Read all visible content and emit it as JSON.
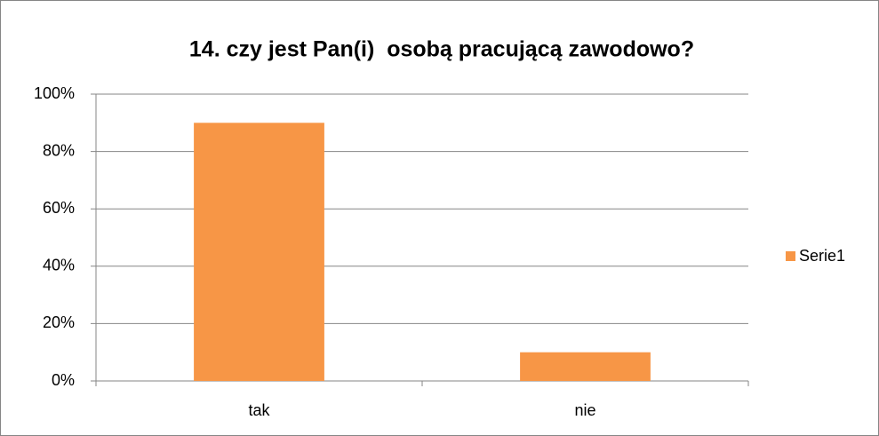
{
  "chart_data": {
    "type": "bar",
    "title": "14. czy jest Pan(i)  osobą pracującą zawodowo?",
    "categories": [
      "tak",
      "nie"
    ],
    "series": [
      {
        "name": "Serie1",
        "color": "#f79646",
        "values": [
          90,
          10
        ]
      }
    ],
    "ylim": [
      0,
      100
    ],
    "yticks": [
      {
        "value": 0,
        "label": "0%"
      },
      {
        "value": 20,
        "label": "20%"
      },
      {
        "value": 40,
        "label": "40%"
      },
      {
        "value": 60,
        "label": "60%"
      },
      {
        "value": 80,
        "label": "80%"
      },
      {
        "value": 100,
        "label": "100%"
      }
    ],
    "grid": true,
    "legend": "right"
  }
}
